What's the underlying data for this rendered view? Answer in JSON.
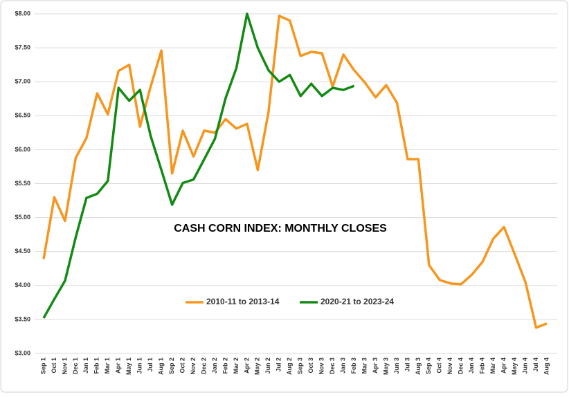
{
  "chart_data": {
    "type": "line",
    "title": "CASH CORN INDEX: MONTHLY CLOSES",
    "categories": [
      "Sep 1",
      "Oct 1",
      "Nov 1",
      "Dec 1",
      "Jan 1",
      "Feb 1",
      "Mar 1",
      "Apr 1",
      "May 1",
      "Jun 1",
      "Jul 1",
      "Aug 1",
      "Sep 2",
      "Oct 2",
      "Nov 2",
      "Dec 2",
      "Jan 2",
      "Feb 2",
      "Mar 2",
      "Apr 2",
      "May 2",
      "Jun 2",
      "Jul 2",
      "Aug 2",
      "Sep 3",
      "Oct 3",
      "Nov 3",
      "Dec 3",
      "Jan 3",
      "Feb 3",
      "Mar 3",
      "Apr 3",
      "May 3",
      "Jun 3",
      "Jul 3",
      "Aug 3",
      "Sep 4",
      "Oct 4",
      "Nov 4",
      "Dec 4",
      "Jan 4",
      "Feb 4",
      "Mar 4",
      "Apr 4",
      "May 4",
      "Jun 4",
      "Jul 4",
      "Aug 4"
    ],
    "series": [
      {
        "name": "2010-11 to 2013-14",
        "color": "#f7961e",
        "values": [
          4.39,
          5.3,
          4.95,
          5.88,
          6.17,
          6.83,
          6.52,
          7.16,
          7.25,
          6.34,
          6.93,
          7.46,
          5.65,
          6.28,
          5.9,
          6.28,
          6.25,
          6.45,
          6.31,
          6.38,
          5.7,
          6.55,
          7.97,
          7.9,
          7.38,
          7.44,
          7.42,
          6.93,
          7.4,
          7.17,
          6.99,
          6.77,
          6.95,
          6.69,
          5.86,
          5.86,
          4.3,
          4.08,
          4.03,
          4.02,
          4.16,
          4.35,
          4.69,
          4.86,
          4.46,
          4.05,
          3.38,
          3.44
        ]
      },
      {
        "name": "2020-21 to 2023-24",
        "color": "#138a13",
        "values": [
          3.52,
          3.8,
          4.07,
          4.71,
          5.29,
          5.35,
          5.54,
          6.91,
          6.72,
          6.88,
          6.2,
          5.7,
          5.19,
          5.51,
          5.56,
          5.86,
          6.16,
          6.76,
          7.2,
          8.0,
          7.5,
          7.17,
          7.0,
          7.1,
          6.79,
          6.97,
          6.79,
          6.91,
          6.88,
          6.94,
          null,
          null,
          null,
          null,
          null,
          null,
          null,
          null,
          null,
          null,
          null,
          null,
          null,
          null,
          null,
          null,
          null,
          null
        ]
      }
    ],
    "ylim": [
      3,
      8
    ],
    "yticks": [
      {
        "value": 3,
        "label": "$3.00"
      },
      {
        "value": 3.5,
        "label": "$3.50"
      },
      {
        "value": 4,
        "label": "$4.00"
      },
      {
        "value": 4.5,
        "label": "$4.50"
      },
      {
        "value": 5,
        "label": "$5.00"
      },
      {
        "value": 5.5,
        "label": "$5.50"
      },
      {
        "value": 6,
        "label": "$6.00"
      },
      {
        "value": 6.5,
        "label": "$6.50"
      },
      {
        "value": 7,
        "label": "$7.00"
      },
      {
        "value": 7.5,
        "label": "$7.50"
      },
      {
        "value": 8,
        "label": "$8.00"
      }
    ],
    "grid": true
  }
}
